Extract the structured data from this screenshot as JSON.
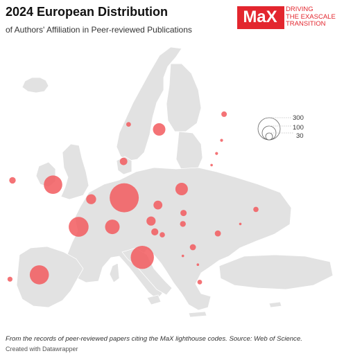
{
  "header": {
    "title": "2024 European Distribution",
    "subtitle": "of Authors' Affiliation in Peer-reviewed Publications"
  },
  "logo": {
    "mark": "MaX",
    "tagline": [
      "DRIVING",
      "THE EXASCALE",
      "TRANSITION"
    ],
    "color": "#e3262e"
  },
  "legend": {
    "values": [
      "300",
      "100",
      "30"
    ]
  },
  "footer": {
    "note": "From the records of peer-reviewed papers citing the MaX lighthouse codes. Source: Web of Science.",
    "credit": "Created with Datawrapper"
  },
  "colors": {
    "land": "#e2e2e2",
    "border": "#ffffff",
    "bubble": "#f25b5e",
    "bubble_opacity": 0.85
  },
  "map_data": {
    "type": "proportional-symbol",
    "size_field": "publications",
    "points": [
      {
        "region": "Germany",
        "lon": 9.9,
        "lat": 50.8,
        "value": 300
      },
      {
        "region": "Italy",
        "lon": 12.8,
        "lat": 42.6,
        "value": 190
      },
      {
        "region": "United Kingdom",
        "lon": -1.5,
        "lat": 52.6,
        "value": 120
      },
      {
        "region": "France",
        "lon": 2.6,
        "lat": 46.8,
        "value": 140
      },
      {
        "region": "Spain",
        "lon": -3.7,
        "lat": 40.2,
        "value": 130
      },
      {
        "region": "Switzerland",
        "lon": 8.0,
        "lat": 46.8,
        "value": 75
      },
      {
        "region": "Poland",
        "lon": 19.1,
        "lat": 52.0,
        "value": 55
      },
      {
        "region": "Belgium",
        "lon": 4.6,
        "lat": 50.6,
        "value": 35
      },
      {
        "region": "Netherlands",
        "lon": 5.5,
        "lat": 52.2,
        "value": 0
      },
      {
        "region": "Sweden",
        "lon": 15.5,
        "lat": 60.2,
        "value": 55
      },
      {
        "region": "Austria",
        "lon": 14.2,
        "lat": 47.6,
        "value": 30
      },
      {
        "region": "Czechia",
        "lon": 15.3,
        "lat": 49.8,
        "value": 28
      },
      {
        "region": "Denmark",
        "lon": 9.8,
        "lat": 55.8,
        "value": 20
      },
      {
        "region": "Slovenia",
        "lon": 14.8,
        "lat": 46.1,
        "value": 18
      },
      {
        "region": "Croatia",
        "lon": 16.0,
        "lat": 45.7,
        "value": 10
      },
      {
        "region": "Hungary",
        "lon": 19.3,
        "lat": 47.2,
        "value": 12
      },
      {
        "region": "Slovakia",
        "lon": 19.4,
        "lat": 48.7,
        "value": 14
      },
      {
        "region": "Serbia",
        "lon": 20.9,
        "lat": 44.0,
        "value": 13
      },
      {
        "region": "Romania",
        "lon": 24.9,
        "lat": 45.9,
        "value": 13
      },
      {
        "region": "Ireland",
        "lon": -8.0,
        "lat": 53.2,
        "value": 15
      },
      {
        "region": "Iceland",
        "lon": -18.6,
        "lat": 64.8,
        "value": 11
      },
      {
        "region": "Finland",
        "lon": 25.9,
        "lat": 62.3,
        "value": 11
      },
      {
        "region": "Norway",
        "lon": 10.6,
        "lat": 60.9,
        "value": 8
      },
      {
        "region": "Portugal",
        "lon": -8.4,
        "lat": 39.6,
        "value": 9
      },
      {
        "region": "Greece",
        "lon": 22.0,
        "lat": 39.2,
        "value": 8
      },
      {
        "region": "Ukraine",
        "lon": 31.0,
        "lat": 49.2,
        "value": 10
      },
      {
        "region": "Estonia",
        "lon": 25.5,
        "lat": 58.7,
        "value": 3
      },
      {
        "region": "Latvia",
        "lon": 24.7,
        "lat": 56.9,
        "value": 3
      },
      {
        "region": "Lithuania",
        "lon": 23.9,
        "lat": 55.3,
        "value": 2
      },
      {
        "region": "Moldova",
        "lon": 28.5,
        "lat": 47.2,
        "value": 1
      },
      {
        "region": "Montenegro",
        "lon": 19.3,
        "lat": 42.8,
        "value": 1
      },
      {
        "region": "North Macedonia",
        "lon": 21.7,
        "lat": 41.6,
        "value": 1
      }
    ]
  }
}
